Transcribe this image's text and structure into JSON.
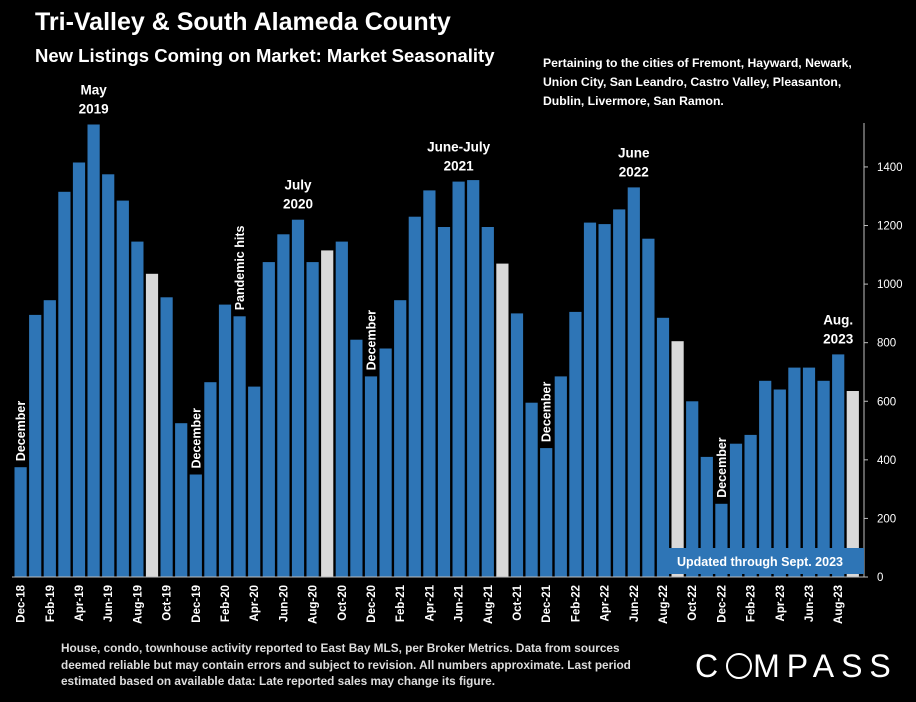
{
  "header": {
    "title": "Tri-Valley & South Alameda County",
    "subtitle": "New Listings Coming on Market: Market Seasonality",
    "note": "Pertaining to the cities of Fremont, Hayward, Newark, Union City, San Leandro, Castro Valley, Pleasanton, Dublin, Livermore, San Ramon."
  },
  "footer": {
    "text": "House, condo, townhouse activity reported to East Bay MLS, per Broker Metrics. Data from sources deemed reliable but may contain errors and subject to revision. All numbers approximate. Last period estimated based on available data: Late reported sales may change its figure.",
    "logo_left": "C",
    "logo_right": "MPASS"
  },
  "colors": {
    "background": "#000000",
    "bar": "#2e75b6",
    "highlight_bar": "#d9d9d9",
    "text": "#ffffff",
    "updated_box": "#2e75b6"
  },
  "chart_data": {
    "type": "bar",
    "categories": [
      "Dec-18",
      "Jan-19",
      "Feb-19",
      "Mar-19",
      "Apr-19",
      "May-19",
      "Jun-19",
      "Jul-19",
      "Aug-19",
      "Sep-19",
      "Oct-19",
      "Nov-19",
      "Dec-19",
      "Jan-20",
      "Feb-20",
      "Mar-20",
      "Apr-20",
      "May-20",
      "Jun-20",
      "Jul-20",
      "Aug-20",
      "Sep-20",
      "Oct-20",
      "Nov-20",
      "Dec-20",
      "Jan-21",
      "Feb-21",
      "Mar-21",
      "Apr-21",
      "May-21",
      "Jun-21",
      "Jul-21",
      "Aug-21",
      "Sep-21",
      "Oct-21",
      "Nov-21",
      "Dec-21",
      "Jan-22",
      "Feb-22",
      "Mar-22",
      "Apr-22",
      "May-22",
      "Jun-22",
      "Jul-22",
      "Aug-22",
      "Sep-22",
      "Oct-22",
      "Nov-22",
      "Dec-22",
      "Jan-23",
      "Feb-23",
      "Mar-23",
      "Apr-23",
      "May-23",
      "Jun-23",
      "Jul-23",
      "Aug-23",
      "Sep-23"
    ],
    "values": [
      375,
      895,
      945,
      1315,
      1415,
      1545,
      1375,
      1285,
      1145,
      1035,
      955,
      525,
      350,
      665,
      930,
      890,
      650,
      1075,
      1170,
      1220,
      1075,
      1115,
      1145,
      810,
      685,
      780,
      945,
      1230,
      1320,
      1195,
      1350,
      1355,
      1195,
      1070,
      900,
      595,
      440,
      685,
      905,
      1210,
      1205,
      1255,
      1330,
      1155,
      885,
      805,
      600,
      410,
      250,
      455,
      485,
      670,
      640,
      715,
      715,
      670,
      760,
      635
    ],
    "highlighted": [
      "Sep-19",
      "Sep-20",
      "Sep-21",
      "Sep-22",
      "Sep-23"
    ],
    "x_tick_labels": [
      "Dec-18",
      "Feb-19",
      "Apr-19",
      "Jun-19",
      "Aug-19",
      "Oct-19",
      "Dec-19",
      "Feb-20",
      "Apr-20",
      "Jun-20",
      "Aug-20",
      "Oct-20",
      "Dec-20",
      "Feb-21",
      "Apr-21",
      "Jun-21",
      "Aug-21",
      "Oct-21",
      "Dec-21",
      "Feb-22",
      "Apr-22",
      "Jun-22",
      "Aug-22",
      "Oct-22",
      "Dec-22",
      "Feb-23",
      "Apr-23",
      "Jun-23",
      "Aug-23"
    ],
    "y_ticks": [
      0,
      200,
      400,
      600,
      800,
      1000,
      1200,
      1400
    ],
    "ylim": [
      0,
      1550
    ],
    "y_axis_side": "right",
    "grid": false,
    "annotations": [
      {
        "text": "December",
        "category": "Dec-18",
        "orientation": "vertical"
      },
      {
        "text": "May 2019",
        "category": "May-19",
        "orientation": "horizontal"
      },
      {
        "text": "December",
        "category": "Dec-19",
        "orientation": "vertical"
      },
      {
        "text": "Pandemic hits",
        "category": "Mar-20",
        "orientation": "vertical"
      },
      {
        "text": "July 2020",
        "category": "Jul-20",
        "orientation": "horizontal"
      },
      {
        "text": "December",
        "category": "Dec-20",
        "orientation": "vertical"
      },
      {
        "text": "June-July 2021",
        "category": "Jun-21",
        "orientation": "horizontal"
      },
      {
        "text": "December",
        "category": "Dec-21",
        "orientation": "vertical"
      },
      {
        "text": "June 2022",
        "category": "Jun-22",
        "orientation": "horizontal"
      },
      {
        "text": "December",
        "category": "Dec-22",
        "orientation": "vertical"
      },
      {
        "text": "Aug. 2023",
        "category": "Aug-23",
        "orientation": "horizontal"
      }
    ],
    "updated_label": "Updated through Sept. 2023"
  }
}
